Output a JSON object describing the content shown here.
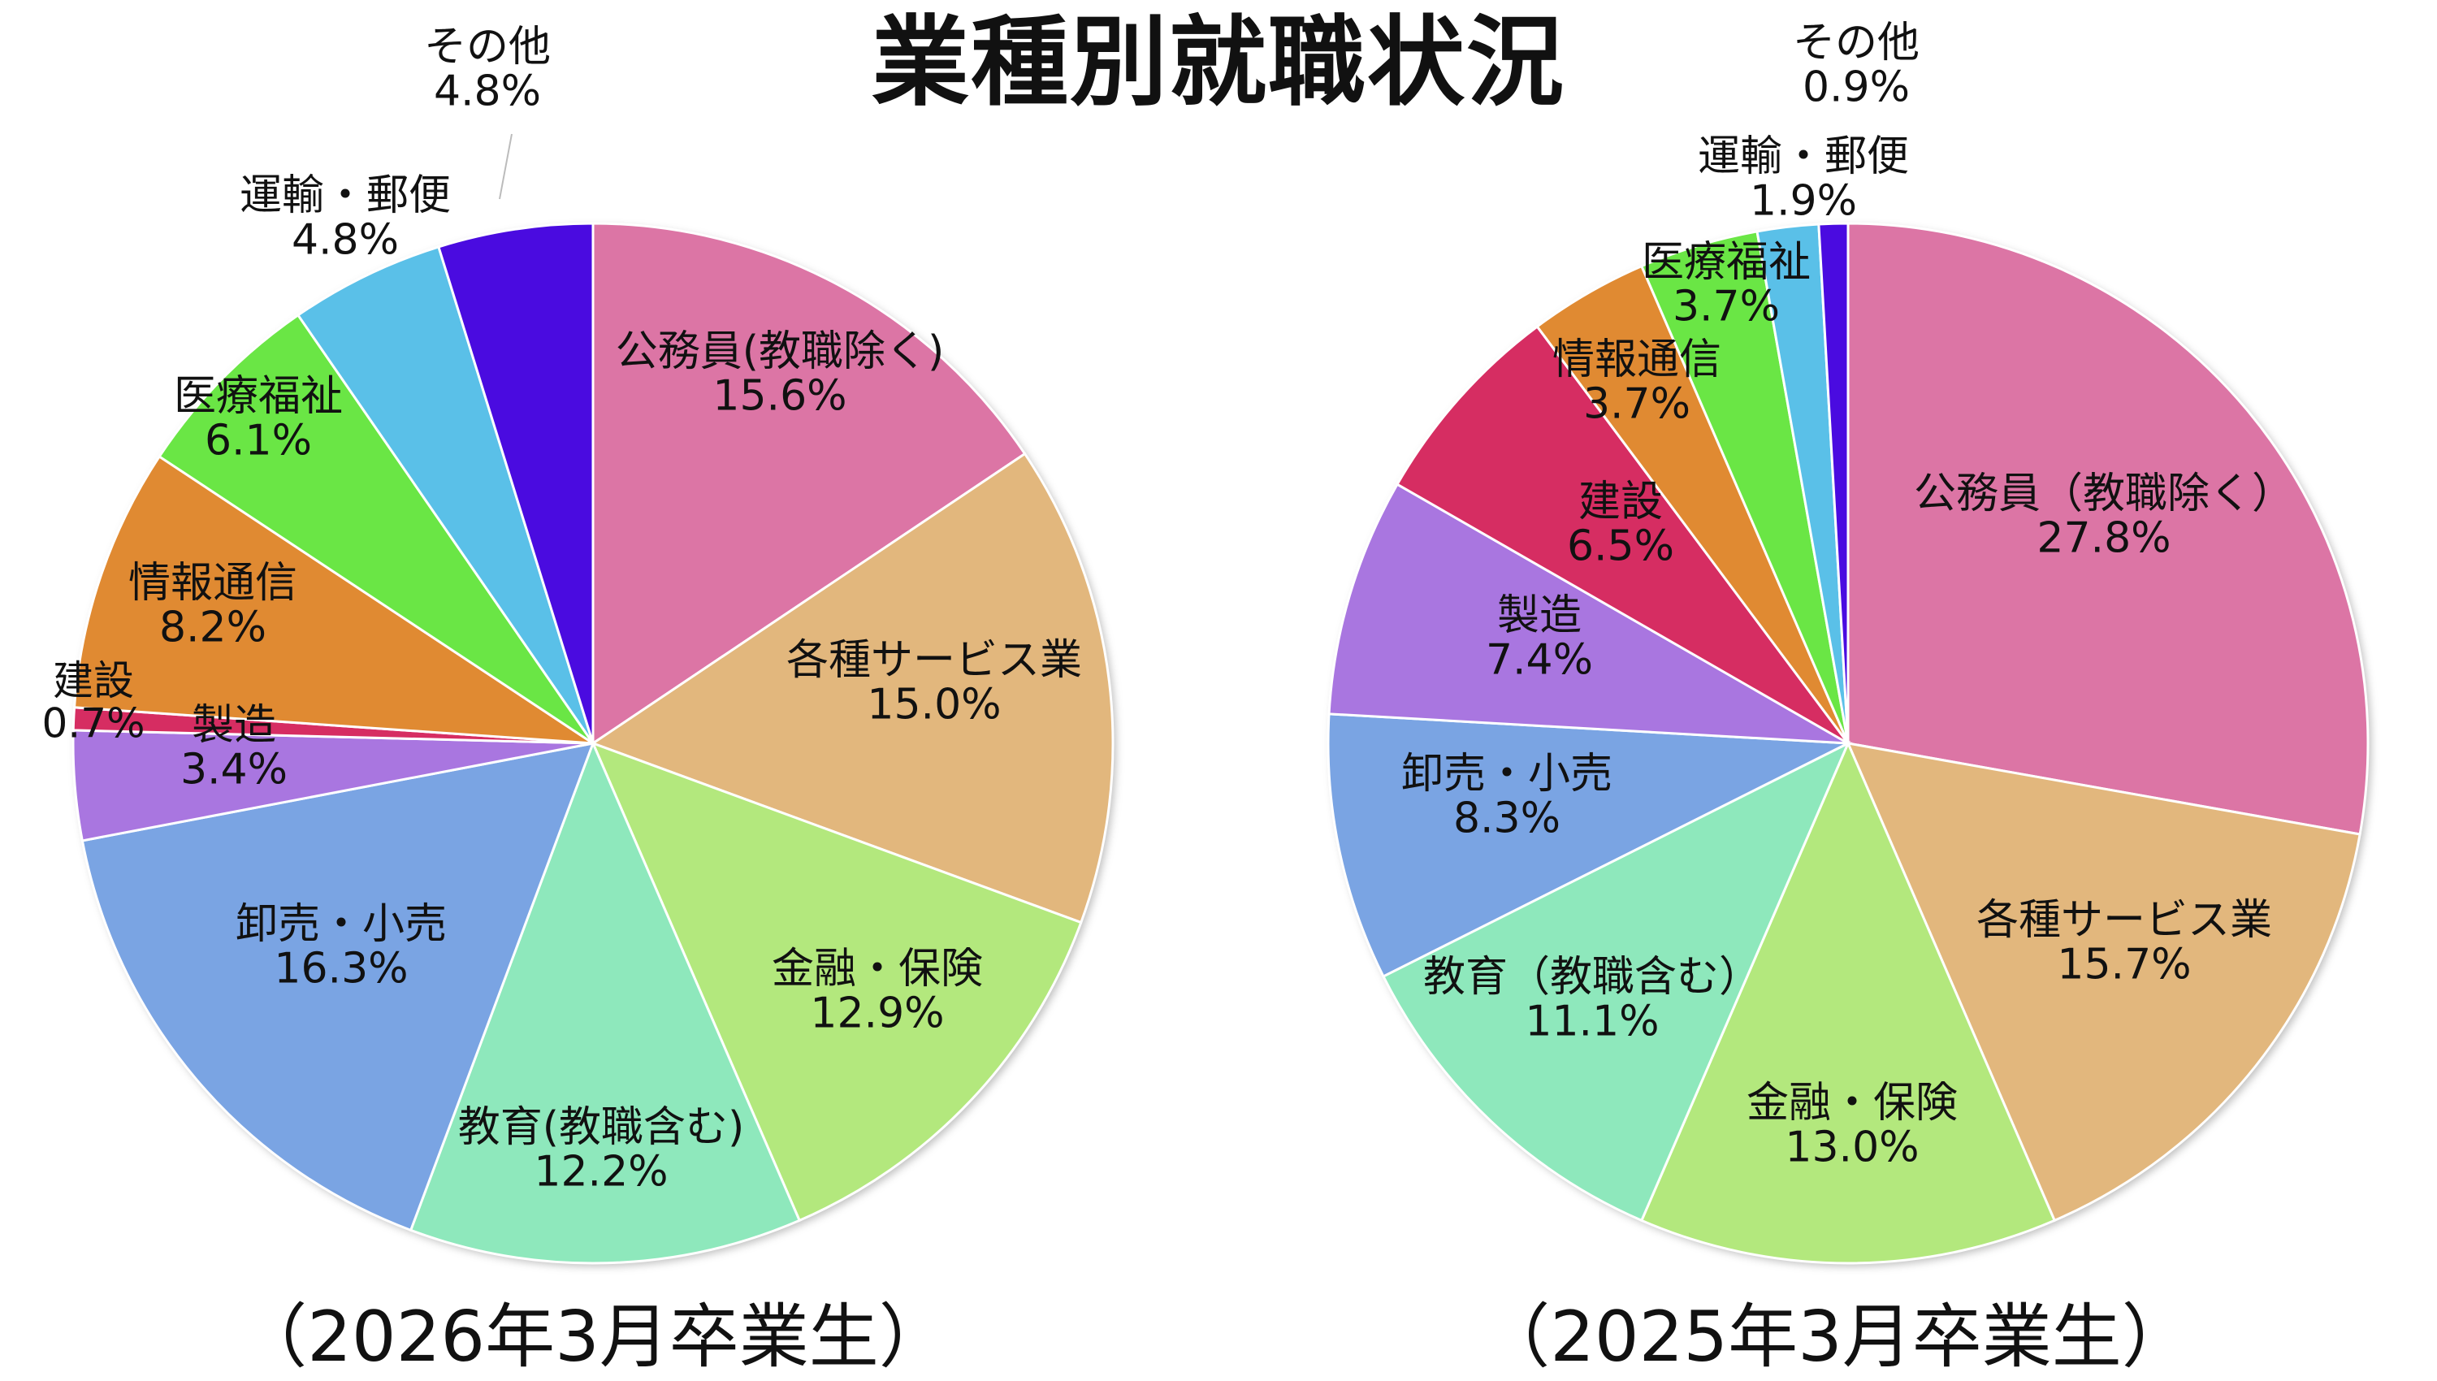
{
  "title": "業種別就職状況",
  "chart_data": [
    {
      "type": "pie",
      "caption": "（2026年3月卒業生）",
      "unit": "%",
      "slices": [
        {
          "label": "公務員(教職除く)",
          "value": 15.6,
          "display": "15.6%",
          "color": "#dc75a5"
        },
        {
          "label": "各種サービス業",
          "value": 15.0,
          "display": "15.0%",
          "color": "#e2b77d"
        },
        {
          "label": "金融・保険",
          "value": 12.9,
          "display": "12.9%",
          "color": "#b3e87d"
        },
        {
          "label": "教育(教職含む)",
          "value": 12.2,
          "display": "12.2%",
          "color": "#8ee8bc"
        },
        {
          "label": "卸売・小売",
          "value": 16.3,
          "display": "16.3%",
          "color": "#7aa4e3"
        },
        {
          "label": "製造",
          "value": 3.4,
          "display": "3.4%",
          "color": "#a976e0"
        },
        {
          "label": "建設",
          "value": 0.7,
          "display": "0.7%",
          "color": "#d62d62"
        },
        {
          "label": "情報通信",
          "value": 8.2,
          "display": "8.2%",
          "color": "#e08a32"
        },
        {
          "label": "医療福祉",
          "value": 6.1,
          "display": "6.1%",
          "color": "#6ae645"
        },
        {
          "label": "運輸・郵便",
          "value": 4.8,
          "display": "4.8%",
          "color": "#5ac0e8"
        },
        {
          "label": "その他",
          "value": 4.8,
          "display": "4.8%",
          "color": "#4a0be0"
        }
      ]
    },
    {
      "type": "pie",
      "caption": "（2025年3月卒業生）",
      "unit": "%",
      "slices": [
        {
          "label": "公務員（教職除く）",
          "value": 27.8,
          "display": "27.8%",
          "color": "#dc75a5"
        },
        {
          "label": "各種サービス業",
          "value": 15.7,
          "display": "15.7%",
          "color": "#e2b77d"
        },
        {
          "label": "金融・保険",
          "value": 13.0,
          "display": "13.0%",
          "color": "#b3e87d"
        },
        {
          "label": "教育（教職含む）",
          "value": 11.1,
          "display": "11.1%",
          "color": "#8ee8bc"
        },
        {
          "label": "卸売・小売",
          "value": 8.3,
          "display": "8.3%",
          "color": "#7aa4e3"
        },
        {
          "label": "製造",
          "value": 7.4,
          "display": "7.4%",
          "color": "#a976e0"
        },
        {
          "label": "建設",
          "value": 6.5,
          "display": "6.5%",
          "color": "#d62d62"
        },
        {
          "label": "情報通信",
          "value": 3.7,
          "display": "3.7%",
          "color": "#e08a32"
        },
        {
          "label": "医療福祉",
          "value": 3.7,
          "display": "3.7%",
          "color": "#6ae645"
        },
        {
          "label": "運輸・郵便",
          "value": 1.9,
          "display": "1.9%",
          "color": "#5ac0e8"
        },
        {
          "label": "その他",
          "value": 0.9,
          "display": "0.9%",
          "color": "#4a0be0"
        }
      ]
    }
  ]
}
